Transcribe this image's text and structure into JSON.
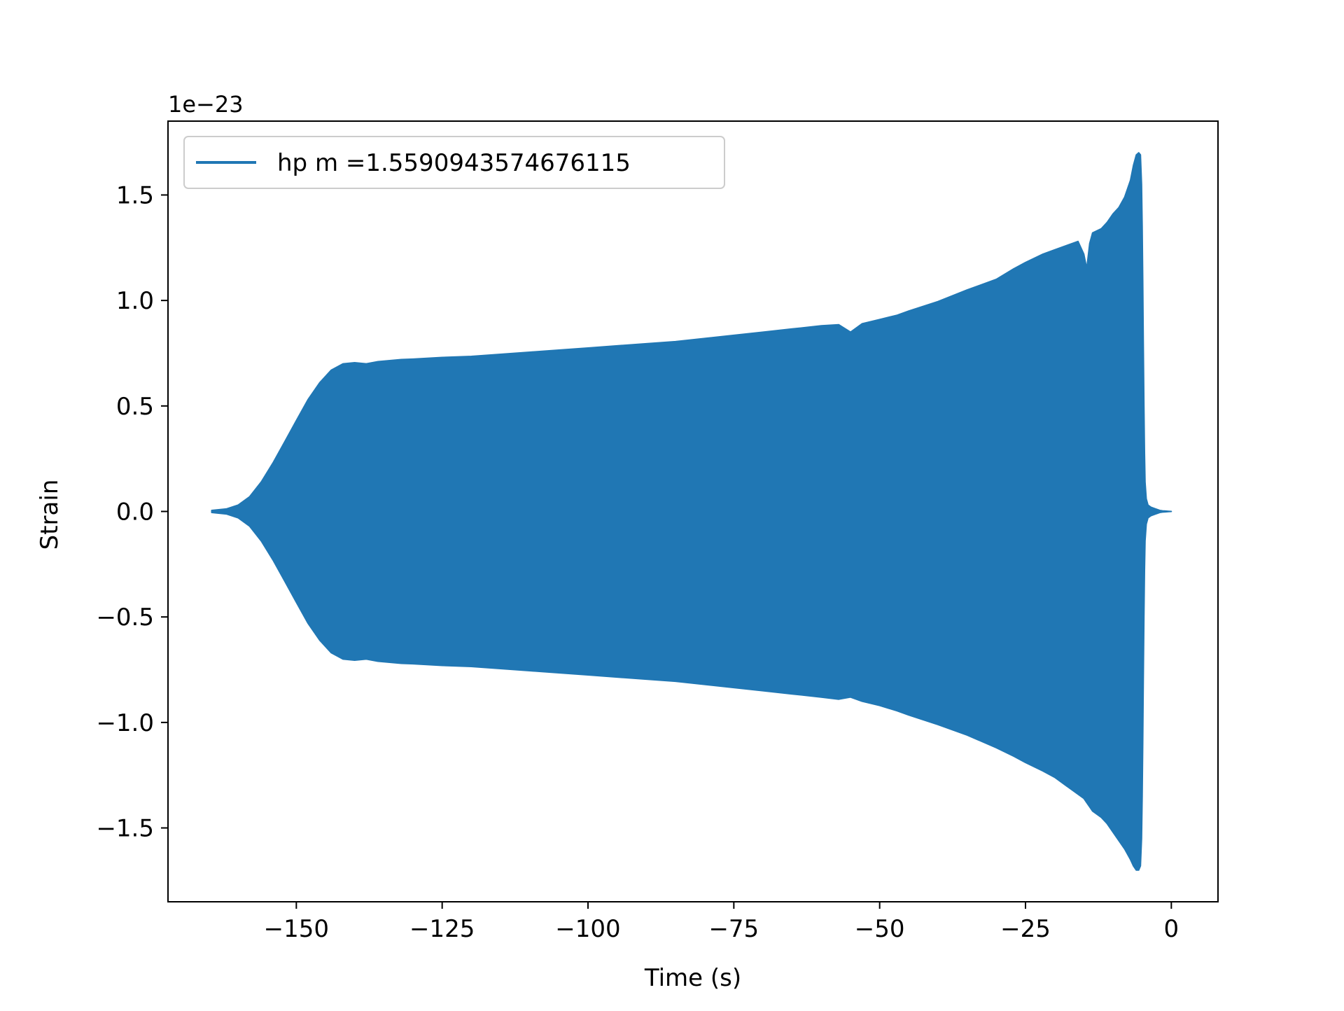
{
  "chart_data": {
    "type": "area",
    "xlabel": "Time (s)",
    "ylabel": "Strain",
    "offset_label": "1e−23",
    "xlim": [
      -172,
      8
    ],
    "ylim": [
      -1.85,
      1.85
    ],
    "xticks": [
      -150,
      -125,
      -100,
      -75,
      -50,
      -25,
      0
    ],
    "xtick_labels": [
      "−150",
      "−125",
      "−100",
      "−75",
      "−50",
      "−25",
      "0"
    ],
    "yticks": [
      1.5,
      1.0,
      0.5,
      0.0,
      -0.5,
      -1.0,
      -1.5
    ],
    "ytick_labels": [
      "1.5",
      "1.0",
      "0.5",
      "0.0",
      "−0.5",
      "−1.0",
      "−1.5"
    ],
    "legend_position": "top-left",
    "grid": false,
    "series": [
      {
        "name": "hp m =1.5590943574676115",
        "color": "#2077b4",
        "x": [
          -164.5,
          -162,
          -160,
          -158,
          -156,
          -154,
          -152,
          -150,
          -148,
          -146,
          -144,
          -142,
          -140,
          -138,
          -136,
          -134,
          -132,
          -130,
          -125,
          -120,
          -115,
          -110,
          -105,
          -100,
          -95,
          -90,
          -85,
          -80,
          -75,
          -70,
          -65,
          -60,
          -57,
          -55,
          -53,
          -50,
          -47,
          -45,
          -40,
          -35,
          -30,
          -27,
          -25,
          -22,
          -20,
          -18,
          -16,
          -15,
          -14.5,
          -14,
          -13.5,
          -12,
          -11,
          -10,
          -9,
          -8,
          -7,
          -6.5,
          -6,
          -5.6,
          -5.3,
          -5.1,
          -5.0,
          -4.9,
          -4.8,
          -4.7,
          -4.6,
          -4.5,
          -4.3,
          -4.0,
          -3.5,
          -3.0,
          -2.5,
          -2.0,
          -1.5,
          -1.0,
          -0.5,
          0.0
        ],
        "upper": [
          0.005,
          0.012,
          0.03,
          0.07,
          0.14,
          0.23,
          0.33,
          0.43,
          0.53,
          0.61,
          0.67,
          0.7,
          0.705,
          0.7,
          0.71,
          0.715,
          0.72,
          0.722,
          0.73,
          0.735,
          0.745,
          0.755,
          0.765,
          0.775,
          0.785,
          0.795,
          0.805,
          0.82,
          0.835,
          0.85,
          0.865,
          0.88,
          0.885,
          0.85,
          0.89,
          0.91,
          0.93,
          0.95,
          0.995,
          1.05,
          1.1,
          1.15,
          1.18,
          1.22,
          1.24,
          1.26,
          1.28,
          1.22,
          1.15,
          1.27,
          1.32,
          1.34,
          1.37,
          1.41,
          1.44,
          1.49,
          1.57,
          1.64,
          1.69,
          1.7,
          1.69,
          1.55,
          1.35,
          1.1,
          0.8,
          0.5,
          0.28,
          0.14,
          0.06,
          0.03,
          0.02,
          0.015,
          0.01,
          0.005,
          0.003,
          0.002,
          0.001,
          0.0
        ],
        "lower": [
          -0.005,
          -0.012,
          -0.03,
          -0.07,
          -0.14,
          -0.23,
          -0.33,
          -0.43,
          -0.53,
          -0.61,
          -0.67,
          -0.7,
          -0.705,
          -0.7,
          -0.71,
          -0.715,
          -0.72,
          -0.722,
          -0.73,
          -0.735,
          -0.745,
          -0.755,
          -0.765,
          -0.775,
          -0.785,
          -0.795,
          -0.805,
          -0.82,
          -0.835,
          -0.85,
          -0.865,
          -0.88,
          -0.89,
          -0.88,
          -0.9,
          -0.92,
          -0.945,
          -0.965,
          -1.01,
          -1.06,
          -1.12,
          -1.16,
          -1.19,
          -1.23,
          -1.26,
          -1.3,
          -1.34,
          -1.36,
          -1.38,
          -1.4,
          -1.42,
          -1.45,
          -1.48,
          -1.52,
          -1.56,
          -1.6,
          -1.65,
          -1.68,
          -1.7,
          -1.7,
          -1.68,
          -1.55,
          -1.35,
          -1.1,
          -0.8,
          -0.5,
          -0.28,
          -0.14,
          -0.06,
          -0.03,
          -0.02,
          -0.015,
          -0.01,
          -0.005,
          -0.003,
          -0.002,
          -0.001,
          0.0
        ]
      }
    ]
  }
}
